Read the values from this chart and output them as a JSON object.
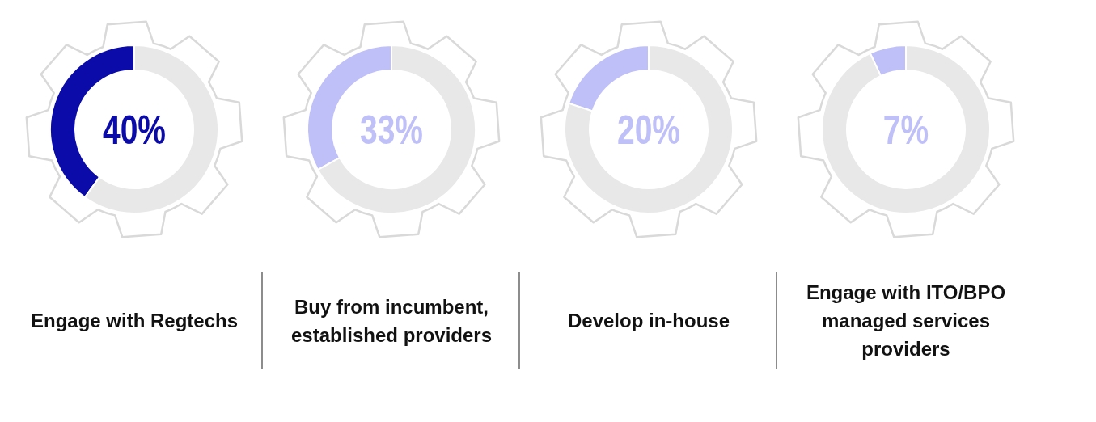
{
  "chart_data": [
    {
      "type": "donut",
      "title": "Engage with Regtechs",
      "categories": [
        null,
        null
      ],
      "values": [
        40,
        60
      ],
      "colors": [
        "#0b0ba9",
        "#e8e8e8"
      ],
      "annotations": [
        "40%"
      ]
    },
    {
      "type": "donut",
      "title": "Buy from incumbent, established providers",
      "categories": [
        null,
        null
      ],
      "values": [
        33,
        67
      ],
      "colors": [
        "#c0c0f9",
        "#e8e8e8"
      ],
      "annotations": [
        "33%"
      ]
    },
    {
      "type": "donut",
      "title": "Develop in-house",
      "categories": [
        null,
        null
      ],
      "values": [
        20,
        80
      ],
      "colors": [
        "#c0c0f9",
        "#e8e8e8"
      ],
      "annotations": [
        "20%"
      ]
    },
    {
      "type": "donut",
      "title": "Engage with ITO/BPO managed services providers",
      "categories": [
        null,
        null
      ],
      "values": [
        7,
        93
      ],
      "colors": [
        "#c0c0f9",
        "#e8e8e8"
      ],
      "annotations": [
        "7%"
      ]
    }
  ]
}
